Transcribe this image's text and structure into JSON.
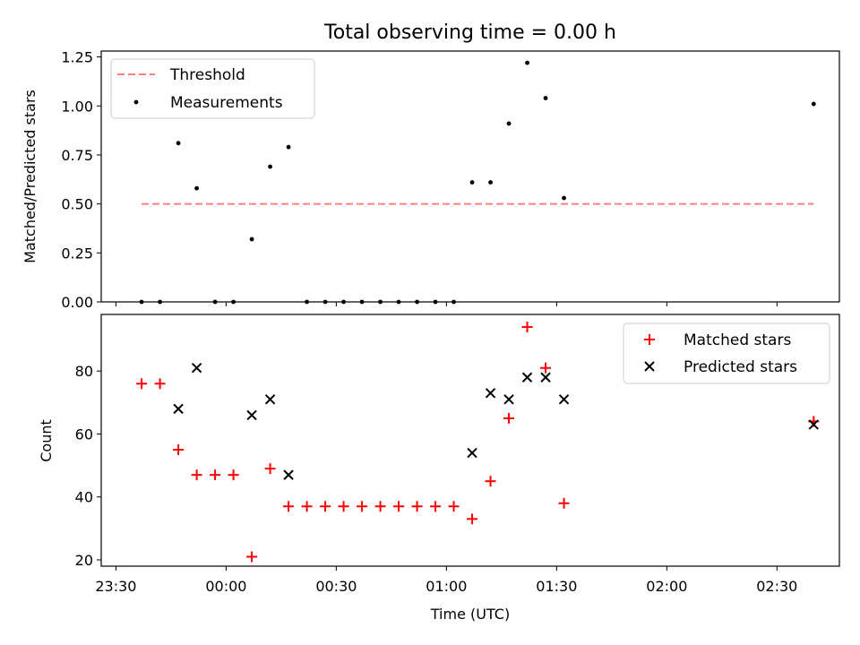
{
  "chart_data": {
    "type": "scatter",
    "title": "Total observing time = 0.00 h",
    "xlabel": "Time (UTC)",
    "x_tick_labels": [
      "23:30",
      "00:00",
      "00:30",
      "01:00",
      "01:30",
      "02:00",
      "02:30"
    ],
    "x_tick_minutes": [
      -30,
      0,
      30,
      60,
      90,
      120,
      150
    ],
    "x_range_minutes": [
      -34,
      167
    ],
    "x": [
      "23:37",
      "23:42",
      "23:47",
      "23:52",
      "23:57",
      "00:02",
      "00:07",
      "00:12",
      "00:17",
      "00:22",
      "00:27",
      "00:32",
      "00:37",
      "00:42",
      "00:47",
      "00:52",
      "00:57",
      "01:02",
      "01:07",
      "01:12",
      "01:17",
      "01:22",
      "01:27",
      "01:32",
      "02:40"
    ],
    "x_minutes": [
      -23,
      -18,
      -13,
      -8,
      -3,
      2,
      7,
      12,
      17,
      22,
      27,
      32,
      37,
      42,
      47,
      52,
      57,
      62,
      67,
      72,
      77,
      82,
      87,
      92,
      160
    ],
    "panels": [
      {
        "ylabel": "Matched/Predicted stars",
        "ylim": [
          0,
          1.28
        ],
        "y_ticks": [
          0.0,
          0.25,
          0.5,
          0.75,
          1.0,
          1.25
        ],
        "y_tick_labels": [
          "0.00",
          "0.25",
          "0.50",
          "0.75",
          "1.00",
          "1.25"
        ],
        "legend_position": "top-left",
        "threshold": {
          "name": "Threshold",
          "value": 0.5,
          "x_from_minutes": -23,
          "x_to_minutes": 160,
          "color": "#ff7f7f",
          "style": "dashed"
        },
        "series": [
          {
            "name": "Measurements",
            "marker": "dot",
            "color": "#000000",
            "values": [
              0,
              0,
              0.81,
              0.58,
              0,
              0,
              0.32,
              0.69,
              0.79,
              0,
              0,
              0,
              0,
              0,
              0,
              0,
              0,
              0,
              0.61,
              0.61,
              0.91,
              1.22,
              1.04,
              0.53,
              1.01
            ]
          }
        ]
      },
      {
        "ylabel": "Count",
        "ylim": [
          18,
          98
        ],
        "y_ticks": [
          20,
          40,
          60,
          80
        ],
        "y_tick_labels": [
          "20",
          "40",
          "60",
          "80"
        ],
        "legend_position": "top-right",
        "series": [
          {
            "name": "Matched stars",
            "marker": "plus",
            "color": "#ff0000",
            "values": [
              76,
              76,
              55,
              47,
              47,
              47,
              21,
              49,
              37,
              37,
              37,
              37,
              37,
              37,
              37,
              37,
              37,
              37,
              33,
              45,
              65,
              94,
              81,
              38,
              64
            ]
          },
          {
            "name": "Predicted stars",
            "marker": "x",
            "color": "#000000",
            "values": [
              null,
              null,
              68,
              81,
              null,
              null,
              66,
              71,
              47,
              null,
              null,
              null,
              null,
              null,
              null,
              null,
              null,
              null,
              54,
              73,
              71,
              78,
              78,
              71,
              63
            ]
          }
        ]
      }
    ]
  }
}
